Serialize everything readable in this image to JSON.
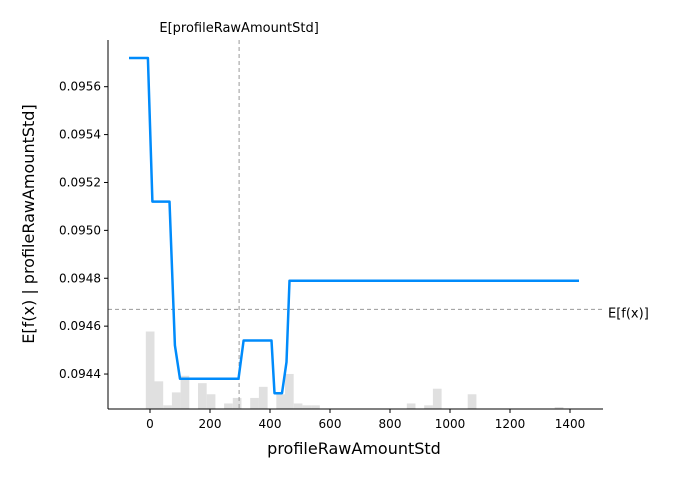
{
  "chart_data": {
    "type": "line",
    "xlabel": "profileRawAmountStd",
    "ylabel": "E[f(x) | profileRawAmountStd]",
    "xlim": [
      -140,
      1510
    ],
    "ylim": [
      0.094254,
      0.095795
    ],
    "x_ticks": [
      0,
      200,
      400,
      600,
      800,
      1000,
      1200,
      1400
    ],
    "y_ticks": [
      0.0944,
      0.0946,
      0.0948,
      0.095,
      0.0952,
      0.0954,
      0.0956
    ],
    "y_tick_labels": [
      "0.0944",
      "0.0946",
      "0.0948",
      "0.0950",
      "0.0952",
      "0.0954",
      "0.0956"
    ],
    "grid": false,
    "series": [
      {
        "color": "#008bfb",
        "x": [
          -70,
          -7,
          8,
          65,
          83,
          100,
          295,
          312,
          405,
          415,
          440,
          455,
          465,
          1430
        ],
        "y": [
          0.09572,
          0.09572,
          0.09512,
          0.09512,
          0.09452,
          0.09438,
          0.09438,
          0.09454,
          0.09454,
          0.09432,
          0.09432,
          0.09445,
          0.09479,
          0.09479
        ]
      }
    ],
    "annotations": {
      "expected_x": {
        "value": 297,
        "label": "E[profileRawAmountStd]"
      },
      "expected_y": {
        "value": 0.09467,
        "label": "E[f(x)]"
      }
    },
    "histogram": {
      "color": "#e0e0e0",
      "bin_width": 29,
      "bins": [
        {
          "x": -14,
          "f": 0.42
        },
        {
          "x": 15,
          "f": 0.15
        },
        {
          "x": 44,
          "f": 0.02
        },
        {
          "x": 73,
          "f": 0.09
        },
        {
          "x": 102,
          "f": 0.18
        },
        {
          "x": 160,
          "f": 0.14
        },
        {
          "x": 189,
          "f": 0.08
        },
        {
          "x": 247,
          "f": 0.03
        },
        {
          "x": 276,
          "f": 0.06
        },
        {
          "x": 334,
          "f": 0.06
        },
        {
          "x": 363,
          "f": 0.12
        },
        {
          "x": 421,
          "f": 0.08
        },
        {
          "x": 450,
          "f": 0.19
        },
        {
          "x": 479,
          "f": 0.03
        },
        {
          "x": 508,
          "f": 0.02
        },
        {
          "x": 537,
          "f": 0.02
        },
        {
          "x": 856,
          "f": 0.03
        },
        {
          "x": 914,
          "f": 0.02
        },
        {
          "x": 943,
          "f": 0.11
        },
        {
          "x": 1059,
          "f": 0.08
        },
        {
          "x": 1349,
          "f": 0.01
        }
      ]
    }
  }
}
